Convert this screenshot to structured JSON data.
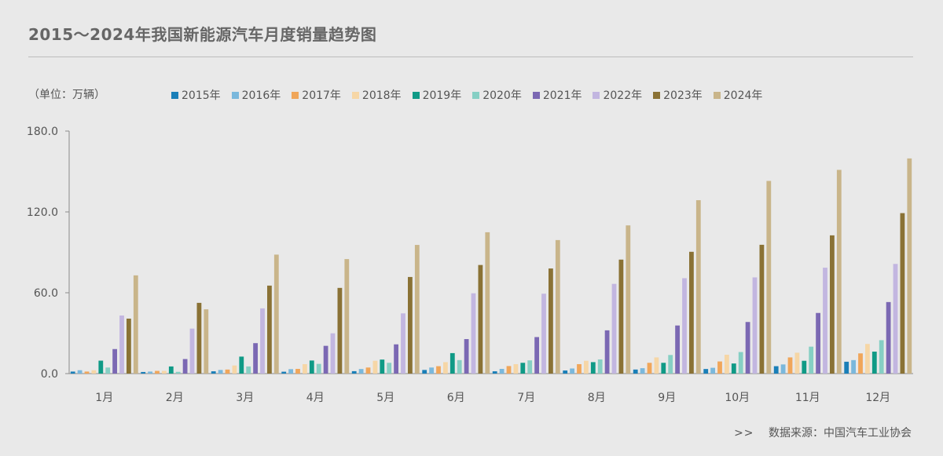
{
  "title": "2015～2024年我国新能源汽车月度销量趋势图",
  "unit_label": "（单位：万辆）",
  "source": {
    "arrows": ">>",
    "text": "数据来源：中国汽车工业协会"
  },
  "colors": {
    "2015年": "#1a7fb8",
    "2016年": "#7ab8dc",
    "2017年": "#f0a65a",
    "2018年": "#f6d6a6",
    "2019年": "#0f9a86",
    "2020年": "#86cfc4",
    "2021年": "#7b68b3",
    "2022年": "#c2b6e0",
    "2023年": "#8a7235",
    "2024年": "#c9b58a"
  },
  "chart_data": {
    "type": "bar",
    "categories": [
      "1月",
      "2月",
      "3月",
      "4月",
      "5月",
      "6月",
      "7月",
      "8月",
      "9月",
      "10月",
      "11月",
      "12月"
    ],
    "y_ticks": [
      "0.0",
      "60.0",
      "120.0",
      "180.0"
    ],
    "ylim": [
      0,
      180
    ],
    "grid": false,
    "legend_position": "top",
    "series": [
      {
        "name": "2015年",
        "values": [
          1.5,
          1.2,
          1.7,
          1.4,
          1.8,
          2.7,
          1.7,
          2.3,
          3.0,
          3.4,
          5.5,
          8.8
        ]
      },
      {
        "name": "2016年",
        "values": [
          2.5,
          1.5,
          2.7,
          3.3,
          3.4,
          4.5,
          3.5,
          3.8,
          4.0,
          4.3,
          6.8,
          10.0
        ]
      },
      {
        "name": "2017年",
        "values": [
          1.5,
          2.0,
          3.0,
          3.5,
          4.5,
          5.5,
          5.6,
          7.0,
          8.0,
          9.0,
          12.0,
          15.0
        ]
      },
      {
        "name": "2018年",
        "values": [
          2.5,
          2.0,
          6.0,
          7.0,
          9.5,
          8.5,
          7.0,
          9.5,
          12.0,
          14.0,
          15.5,
          22.0
        ]
      },
      {
        "name": "2019年",
        "values": [
          9.6,
          5.3,
          12.6,
          9.7,
          10.4,
          15.2,
          8.0,
          8.5,
          8.0,
          7.5,
          9.5,
          16.3
        ]
      },
      {
        "name": "2020年",
        "values": [
          4.5,
          1.3,
          5.3,
          7.2,
          8.0,
          10.0,
          9.8,
          10.5,
          13.8,
          16.0,
          20.0,
          24.8
        ]
      },
      {
        "name": "2021年",
        "values": [
          18.2,
          10.8,
          22.6,
          20.6,
          21.7,
          25.6,
          27.1,
          32.1,
          35.7,
          38.3,
          45.0,
          53.1
        ]
      },
      {
        "name": "2022年",
        "values": [
          43.1,
          33.4,
          48.4,
          29.9,
          44.7,
          59.6,
          59.3,
          66.6,
          70.8,
          71.4,
          78.6,
          81.4
        ]
      },
      {
        "name": "2023年",
        "values": [
          40.8,
          52.5,
          65.3,
          63.6,
          71.7,
          80.6,
          78.0,
          84.6,
          90.4,
          95.6,
          102.6,
          119.1
        ]
      },
      {
        "name": "2024年",
        "values": [
          72.9,
          47.7,
          88.3,
          85.0,
          95.5,
          104.9,
          99.1,
          110.0,
          128.7,
          143.0,
          151.2,
          159.7
        ]
      }
    ]
  }
}
